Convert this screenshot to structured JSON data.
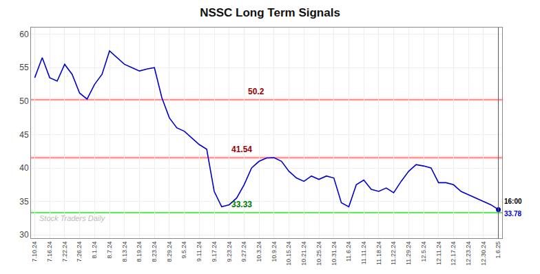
{
  "chart_data": {
    "type": "line",
    "title": "NSSC Long Term Signals",
    "categories": [
      "7.10.24",
      null,
      "7.16.24",
      null,
      "7.22.24",
      null,
      "7.26.24",
      null,
      "8.1.24",
      null,
      "8.7.24",
      null,
      "8.13.24",
      null,
      "8.19.24",
      null,
      "8.23.24",
      null,
      "8.29.24",
      null,
      "9.5.24",
      null,
      "9.11.24",
      null,
      "9.17.24",
      null,
      "9.23.24",
      null,
      "9.27.24",
      null,
      "10.3.24",
      null,
      "10.9.24",
      null,
      "10.15.24",
      null,
      "10.21.24",
      null,
      "10.25.24",
      null,
      "10.31.24",
      null,
      "11.6.24",
      null,
      "11.11.24",
      null,
      "11.18.24",
      null,
      "11.22.24",
      null,
      "11.29.24",
      null,
      "12.5.24",
      null,
      "12.11.24",
      null,
      "12.17.24",
      null,
      "12.23.24",
      null,
      "12.30.24",
      null,
      "1.6.25"
    ],
    "values": [
      53.5,
      56.5,
      53.5,
      53.0,
      55.5,
      54.0,
      51.2,
      50.3,
      52.5,
      54.0,
      57.5,
      56.5,
      55.5,
      55.0,
      54.5,
      54.8,
      55.0,
      50.5,
      47.5,
      46.0,
      45.5,
      44.5,
      43.5,
      42.8,
      36.5,
      34.2,
      34.5,
      35.5,
      37.5,
      40.0,
      41.0,
      41.5,
      41.54,
      41.0,
      39.5,
      38.5,
      38.0,
      38.8,
      38.3,
      38.8,
      38.5,
      34.8,
      34.2,
      37.5,
      38.2,
      36.8,
      36.5,
      37.0,
      36.3,
      38.0,
      39.5,
      40.5,
      40.3,
      40.0,
      37.8,
      37.8,
      37.5,
      36.5,
      36.0,
      35.5,
      35.0,
      34.5,
      33.78
    ],
    "color": "#0000cc",
    "hlines": [
      {
        "value": 50.2,
        "label": "50.2",
        "color": "#ff6666",
        "label_color": "#990000"
      },
      {
        "value": 41.54,
        "label": "41.54",
        "color": "#ff6666",
        "label_color": "#990000"
      },
      {
        "value": 33.33,
        "label": "33.33",
        "color": "#33cc33",
        "label_color": "#007700"
      }
    ],
    "annotations": [
      {
        "text": "16:00",
        "color": "#000000"
      },
      {
        "text": "33.78",
        "color": "#0000cc"
      },
      {
        "text": "Stock Traders Daily",
        "color": "#bbbbbb"
      }
    ],
    "ylim": [
      29.5,
      61
    ],
    "yticks": [
      30,
      35,
      40,
      45,
      50,
      55,
      60
    ],
    "grid": true
  }
}
